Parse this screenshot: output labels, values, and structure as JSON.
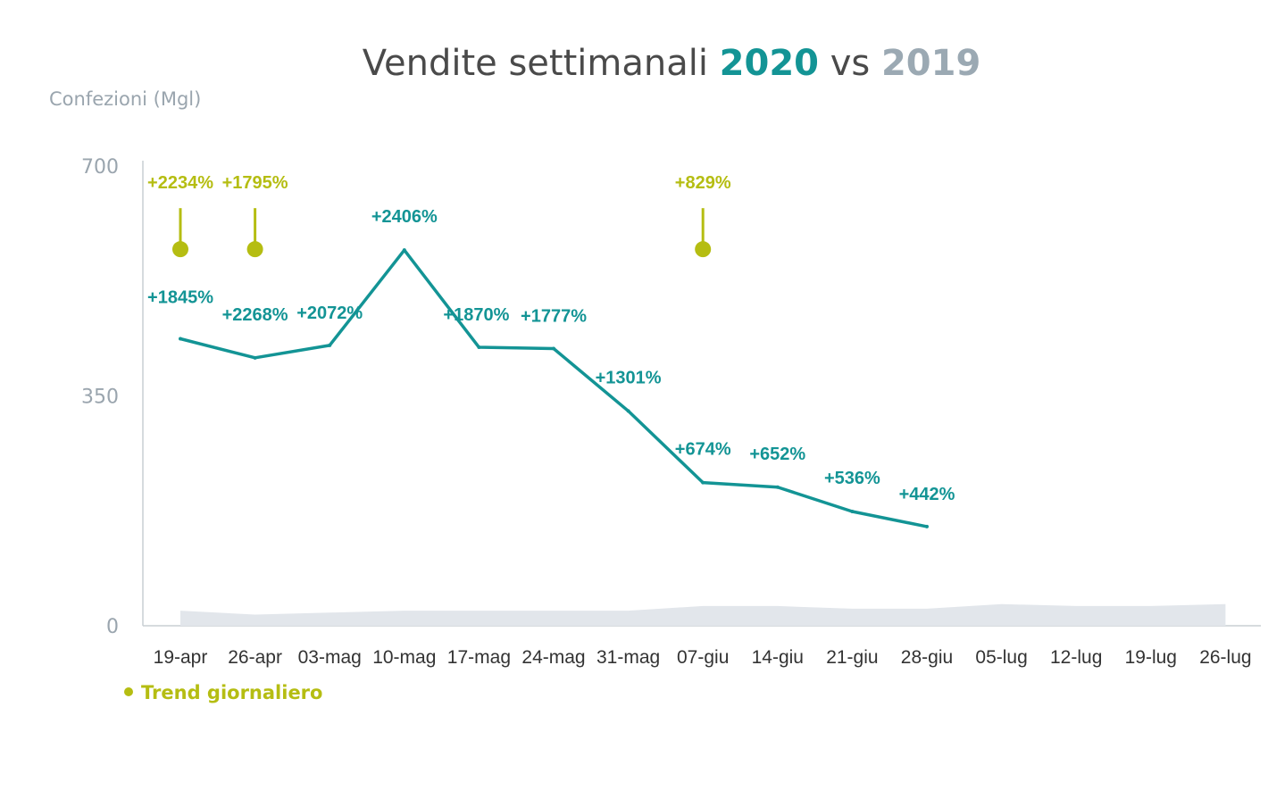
{
  "colors": {
    "series_2020": "#139495",
    "series_2019": "#e2e6eb",
    "trend": "#b5bd12",
    "title_text": "#4a4a4a",
    "title_2019": "#9ba9b3",
    "axis": "#c9cfd4",
    "ticks": "#9aa5ae"
  },
  "chart_data": {
    "type": "line",
    "title": {
      "prefix": "Vendite settimanali",
      "year_a": "2020",
      "middle": "vs",
      "year_b": "2019"
    },
    "ylabel": "Confezioni (Mgl)",
    "xlabel": "",
    "ylim": [
      0,
      700
    ],
    "yticks": [
      "0",
      "350",
      "700"
    ],
    "categories": [
      "19-apr",
      "26-apr",
      "03-mag",
      "10-mag",
      "17-mag",
      "24-mag",
      "31-mag",
      "07-giu",
      "14-giu",
      "21-giu",
      "28-giu",
      "05-lug",
      "12-lug",
      "19-lug",
      "26-lug"
    ],
    "series": [
      {
        "name": "2020",
        "values": [
          437,
          408,
          427,
          572,
          424,
          422,
          327,
          218,
          211,
          174,
          151,
          null,
          null,
          null,
          null
        ],
        "labels": [
          "+1845%",
          "+2268%",
          "+2072%",
          "+2406%",
          "+1870%",
          "+1777%",
          "+1301%",
          "+674%",
          "+652%",
          "+536%",
          "+442%",
          null,
          null,
          null,
          null
        ]
      },
      {
        "name": "2019",
        "values": [
          23,
          17,
          20,
          23,
          23,
          23,
          23,
          30,
          30,
          26,
          26,
          33,
          30,
          30,
          33
        ]
      }
    ],
    "trend_markers": [
      {
        "category": "19-apr",
        "label": "+2234%",
        "value": 572
      },
      {
        "category": "26-apr",
        "label": "+1795%",
        "value": 572
      },
      {
        "category": "07-giu",
        "label": "+829%",
        "value": 572
      }
    ],
    "legend": {
      "label": "Trend giornaliero",
      "position": "bottom-left"
    },
    "grid": false
  }
}
